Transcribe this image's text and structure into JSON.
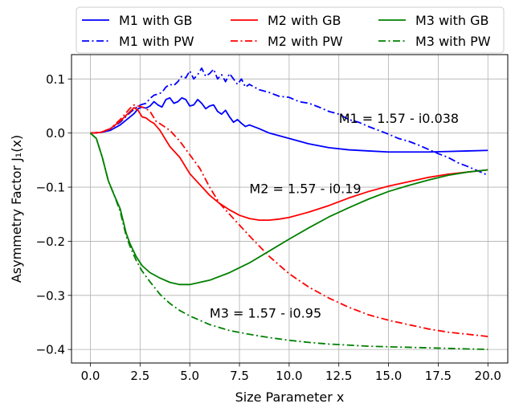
{
  "chart_data": {
    "type": "line",
    "title": "",
    "xlabel": "Size Parameter x",
    "ylabel": "Asymmetry Factor J₁(x)",
    "xlim": [
      -0.95,
      21.0
    ],
    "ylim": [
      -0.425,
      0.145
    ],
    "xticks": [
      0.0,
      2.5,
      5.0,
      7.5,
      10.0,
      12.5,
      15.0,
      17.5,
      20.0
    ],
    "xtick_labels": [
      "0.0",
      "2.5",
      "5.0",
      "7.5",
      "10.0",
      "12.5",
      "15.0",
      "17.5",
      "20.0"
    ],
    "yticks": [
      -0.4,
      -0.3,
      -0.2,
      -0.1,
      0.0,
      0.1
    ],
    "ytick_labels": [
      "−0.4",
      "−0.3",
      "−0.2",
      "−0.1",
      "0.0",
      "0.1"
    ],
    "grid": true,
    "legend": {
      "position": "top",
      "columns": 3
    },
    "series": [
      {
        "name": "M1 with GB",
        "color": "#0000ff",
        "style": "solid",
        "x": [
          0,
          0.5,
          1,
          1.5,
          2,
          2.2,
          2.4,
          2.6,
          2.8,
          3.0,
          3.2,
          3.4,
          3.6,
          3.8,
          4.0,
          4.2,
          4.4,
          4.6,
          4.8,
          5.0,
          5.2,
          5.4,
          5.6,
          5.8,
          6.0,
          6.2,
          6.4,
          6.6,
          6.8,
          7.0,
          7.2,
          7.4,
          7.6,
          7.8,
          8.0,
          8.5,
          9,
          10,
          11,
          12,
          13,
          14,
          15,
          16,
          17,
          18,
          19,
          20
        ],
        "y": [
          0,
          0.001,
          0.005,
          0.015,
          0.03,
          0.036,
          0.045,
          0.048,
          0.046,
          0.05,
          0.058,
          0.052,
          0.048,
          0.062,
          0.065,
          0.055,
          0.058,
          0.065,
          0.062,
          0.05,
          0.052,
          0.062,
          0.055,
          0.045,
          0.05,
          0.052,
          0.04,
          0.035,
          0.042,
          0.03,
          0.02,
          0.025,
          0.018,
          0.012,
          0.015,
          0.008,
          0.0,
          -0.01,
          -0.02,
          -0.027,
          -0.031,
          -0.033,
          -0.035,
          -0.035,
          -0.035,
          -0.034,
          -0.033,
          -0.032
        ]
      },
      {
        "name": "M1 with PW",
        "color": "#0000ff",
        "style": "dashdot",
        "x": [
          0,
          0.5,
          1,
          1.5,
          2,
          2.2,
          2.4,
          2.6,
          2.8,
          3.0,
          3.2,
          3.4,
          3.6,
          3.8,
          4.0,
          4.2,
          4.4,
          4.6,
          4.8,
          5.0,
          5.2,
          5.4,
          5.6,
          5.8,
          6.0,
          6.2,
          6.4,
          6.6,
          6.8,
          7.0,
          7.2,
          7.4,
          7.6,
          7.8,
          8.0,
          8.5,
          9,
          9.5,
          10,
          10.5,
          11,
          11.5,
          12,
          12.5,
          13,
          13.5,
          14,
          14.5,
          15,
          15.5,
          16,
          16.5,
          17,
          17.5,
          18,
          18.5,
          19,
          19.5,
          20
        ],
        "y": [
          0,
          0.001,
          0.008,
          0.02,
          0.038,
          0.044,
          0.05,
          0.053,
          0.055,
          0.064,
          0.07,
          0.072,
          0.075,
          0.085,
          0.09,
          0.088,
          0.095,
          0.105,
          0.102,
          0.115,
          0.1,
          0.108,
          0.12,
          0.105,
          0.11,
          0.118,
          0.1,
          0.108,
          0.095,
          0.11,
          0.1,
          0.09,
          0.1,
          0.085,
          0.09,
          0.08,
          0.075,
          0.068,
          0.066,
          0.058,
          0.055,
          0.048,
          0.04,
          0.035,
          0.025,
          0.02,
          0.012,
          0.005,
          -0.002,
          -0.01,
          -0.015,
          -0.022,
          -0.03,
          -0.038,
          -0.045,
          -0.055,
          -0.062,
          -0.07,
          -0.078
        ]
      },
      {
        "name": "M2 with GB",
        "color": "#ff0000",
        "style": "solid",
        "x": [
          0,
          0.5,
          1,
          1.5,
          2,
          2.2,
          2.4,
          2.6,
          2.8,
          3.0,
          3.2,
          3.5,
          4.0,
          4.5,
          5.0,
          5.5,
          6.0,
          6.5,
          7.0,
          7.5,
          8.0,
          8.5,
          9,
          9.5,
          10,
          11,
          12,
          13,
          14,
          15,
          16,
          17,
          18,
          19,
          20
        ],
        "y": [
          0,
          0.001,
          0.008,
          0.022,
          0.04,
          0.047,
          0.042,
          0.03,
          0.028,
          0.022,
          0.018,
          0.005,
          -0.025,
          -0.045,
          -0.075,
          -0.095,
          -0.115,
          -0.13,
          -0.142,
          -0.152,
          -0.158,
          -0.161,
          -0.161,
          -0.159,
          -0.156,
          -0.146,
          -0.134,
          -0.12,
          -0.108,
          -0.098,
          -0.09,
          -0.082,
          -0.076,
          -0.072,
          -0.068
        ]
      },
      {
        "name": "M2 with PW",
        "color": "#ff0000",
        "style": "dashdot",
        "x": [
          0,
          0.5,
          1,
          1.5,
          2,
          2.2,
          2.4,
          2.6,
          2.8,
          3.0,
          3.3,
          3.6,
          4.0,
          4.5,
          5.0,
          5.5,
          6.0,
          6.5,
          7.0,
          7.5,
          8.0,
          9,
          10,
          11,
          12,
          13,
          14,
          15,
          16,
          17,
          18,
          19,
          20
        ],
        "y": [
          0,
          0.001,
          0.008,
          0.025,
          0.046,
          0.052,
          0.05,
          0.048,
          0.045,
          0.04,
          0.022,
          0.015,
          0.005,
          -0.015,
          -0.04,
          -0.065,
          -0.1,
          -0.13,
          -0.15,
          -0.17,
          -0.19,
          -0.228,
          -0.26,
          -0.285,
          -0.305,
          -0.322,
          -0.336,
          -0.346,
          -0.354,
          -0.362,
          -0.368,
          -0.372,
          -0.376
        ]
      },
      {
        "name": "M3 with GB",
        "color": "#008000",
        "style": "solid",
        "x": [
          0,
          0.3,
          0.6,
          0.9,
          1.2,
          1.5,
          1.8,
          2.0,
          2.3,
          2.6,
          3.0,
          3.5,
          4.0,
          4.5,
          5.0,
          5.5,
          6.0,
          7.0,
          8.0,
          9.0,
          10,
          11,
          12,
          13,
          14,
          15,
          16,
          17,
          18,
          19,
          20
        ],
        "y": [
          0,
          -0.01,
          -0.045,
          -0.088,
          -0.115,
          -0.14,
          -0.185,
          -0.205,
          -0.228,
          -0.245,
          -0.258,
          -0.268,
          -0.276,
          -0.28,
          -0.28,
          -0.276,
          -0.272,
          -0.258,
          -0.24,
          -0.218,
          -0.196,
          -0.175,
          -0.155,
          -0.138,
          -0.122,
          -0.108,
          -0.097,
          -0.087,
          -0.078,
          -0.072,
          -0.068
        ]
      },
      {
        "name": "M3 with PW",
        "color": "#008000",
        "style": "dashdot",
        "x": [
          0,
          0.3,
          0.6,
          0.9,
          1.2,
          1.5,
          1.8,
          2.0,
          2.3,
          2.6,
          3.0,
          3.5,
          4.0,
          4.5,
          5.0,
          6.0,
          7.0,
          8.0,
          9.0,
          10,
          11,
          12,
          13,
          14,
          15,
          16,
          17,
          18,
          19,
          20
        ],
        "y": [
          0,
          -0.01,
          -0.045,
          -0.088,
          -0.115,
          -0.145,
          -0.19,
          -0.21,
          -0.235,
          -0.255,
          -0.275,
          -0.298,
          -0.315,
          -0.328,
          -0.338,
          -0.354,
          -0.365,
          -0.372,
          -0.378,
          -0.383,
          -0.387,
          -0.39,
          -0.392,
          -0.394,
          -0.395,
          -0.396,
          -0.397,
          -0.398,
          -0.399,
          -0.4
        ]
      }
    ],
    "annotations": [
      {
        "text": "M1 = 1.57 - i0.038",
        "x": 12.5,
        "y": 0.028
      },
      {
        "text": "M2 = 1.57 - i0.19",
        "x": 8.0,
        "y": -0.102
      },
      {
        "text": "M3 = 1.57 - i0.95",
        "x": 6.0,
        "y": -0.332
      }
    ]
  }
}
